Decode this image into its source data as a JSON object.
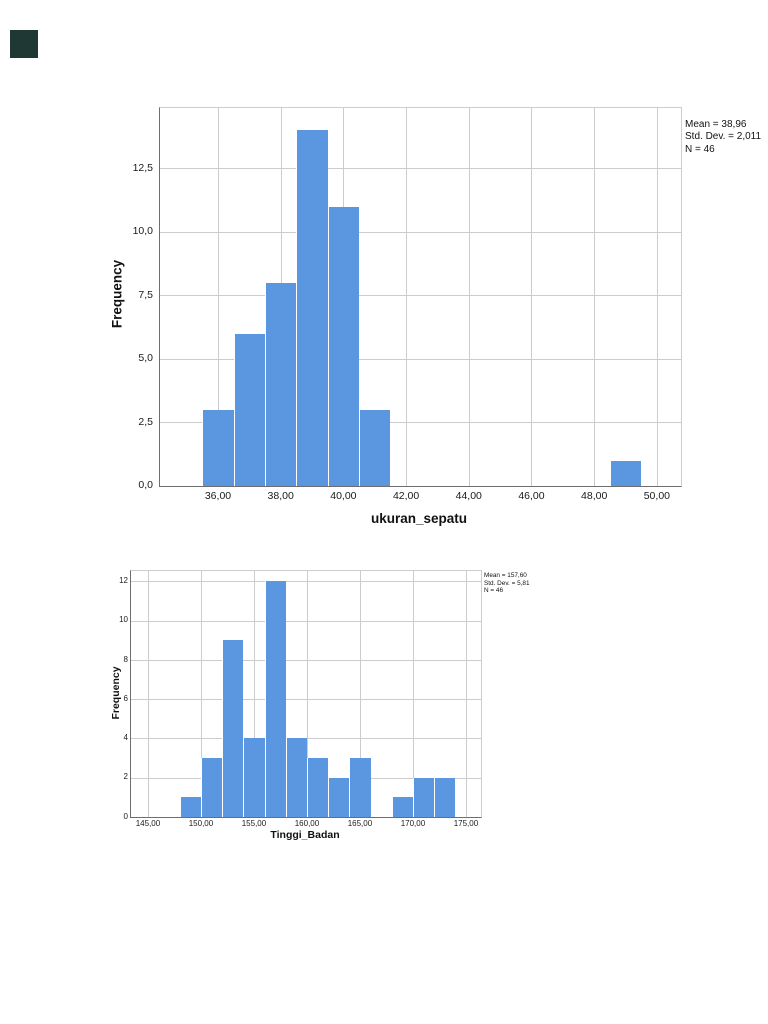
{
  "decorative_square": {
    "color": "#1f3833"
  },
  "chart_data": [
    {
      "type": "bar",
      "variant": "histogram",
      "xlabel": "ukuran_sepatu",
      "ylabel": "Frequency",
      "stats": [
        "Mean = 38,96",
        "Std. Dev. = 2,011",
        "N = 46"
      ],
      "bin_width": 1,
      "x": [
        36,
        37,
        38,
        39,
        40,
        41,
        49
      ],
      "values": [
        3,
        6,
        8,
        14,
        11,
        3,
        1
      ],
      "xticks": [
        {
          "v": 36,
          "label": "36,00"
        },
        {
          "v": 38,
          "label": "38,00"
        },
        {
          "v": 40,
          "label": "40,00"
        },
        {
          "v": 42,
          "label": "42,00"
        },
        {
          "v": 44,
          "label": "44,00"
        },
        {
          "v": 46,
          "label": "46,00"
        },
        {
          "v": 48,
          "label": "48,00"
        },
        {
          "v": 50,
          "label": "50,00"
        }
      ],
      "yticks": [
        {
          "v": 0,
          "label": "0,0"
        },
        {
          "v": 2.5,
          "label": "2,5"
        },
        {
          "v": 5,
          "label": "5,0"
        },
        {
          "v": 7.5,
          "label": "7,5"
        },
        {
          "v": 10,
          "label": "10,0"
        },
        {
          "v": 12.5,
          "label": "12,5"
        }
      ],
      "xlim": [
        34.15,
        50.77
      ],
      "ylim": [
        0,
        14.88
      ],
      "grid": true,
      "legend_position": "none",
      "bar_color": "#5b96e0"
    },
    {
      "type": "bar",
      "variant": "histogram",
      "xlabel": "Tinggi_Badan",
      "ylabel": "Frequency",
      "stats": [
        "Mean = 157,60",
        "Std. Dev. = 5,81",
        "N = 46"
      ],
      "bin_width": 2,
      "x": [
        149,
        151,
        153,
        155,
        157,
        159,
        161,
        163,
        165,
        169,
        171,
        173
      ],
      "values": [
        1,
        3,
        9,
        4,
        12,
        4,
        3,
        2,
        3,
        1,
        2,
        2
      ],
      "xticks": [
        {
          "v": 145,
          "label": "145,00"
        },
        {
          "v": 150,
          "label": "150,00"
        },
        {
          "v": 155,
          "label": "155,00"
        },
        {
          "v": 160,
          "label": "160,00"
        },
        {
          "v": 165,
          "label": "165,00"
        },
        {
          "v": 170,
          "label": "170,00"
        },
        {
          "v": 175,
          "label": "175,00"
        }
      ],
      "yticks": [
        {
          "v": 0,
          "label": "0"
        },
        {
          "v": 2,
          "label": "2"
        },
        {
          "v": 4,
          "label": "4"
        },
        {
          "v": 6,
          "label": "6"
        },
        {
          "v": 8,
          "label": "8"
        },
        {
          "v": 10,
          "label": "10"
        },
        {
          "v": 12,
          "label": "12"
        }
      ],
      "xlim": [
        143.4,
        176.42
      ],
      "ylim": [
        0,
        12.53
      ],
      "grid": true,
      "legend_position": "none",
      "bar_color": "#5b96e0"
    }
  ]
}
